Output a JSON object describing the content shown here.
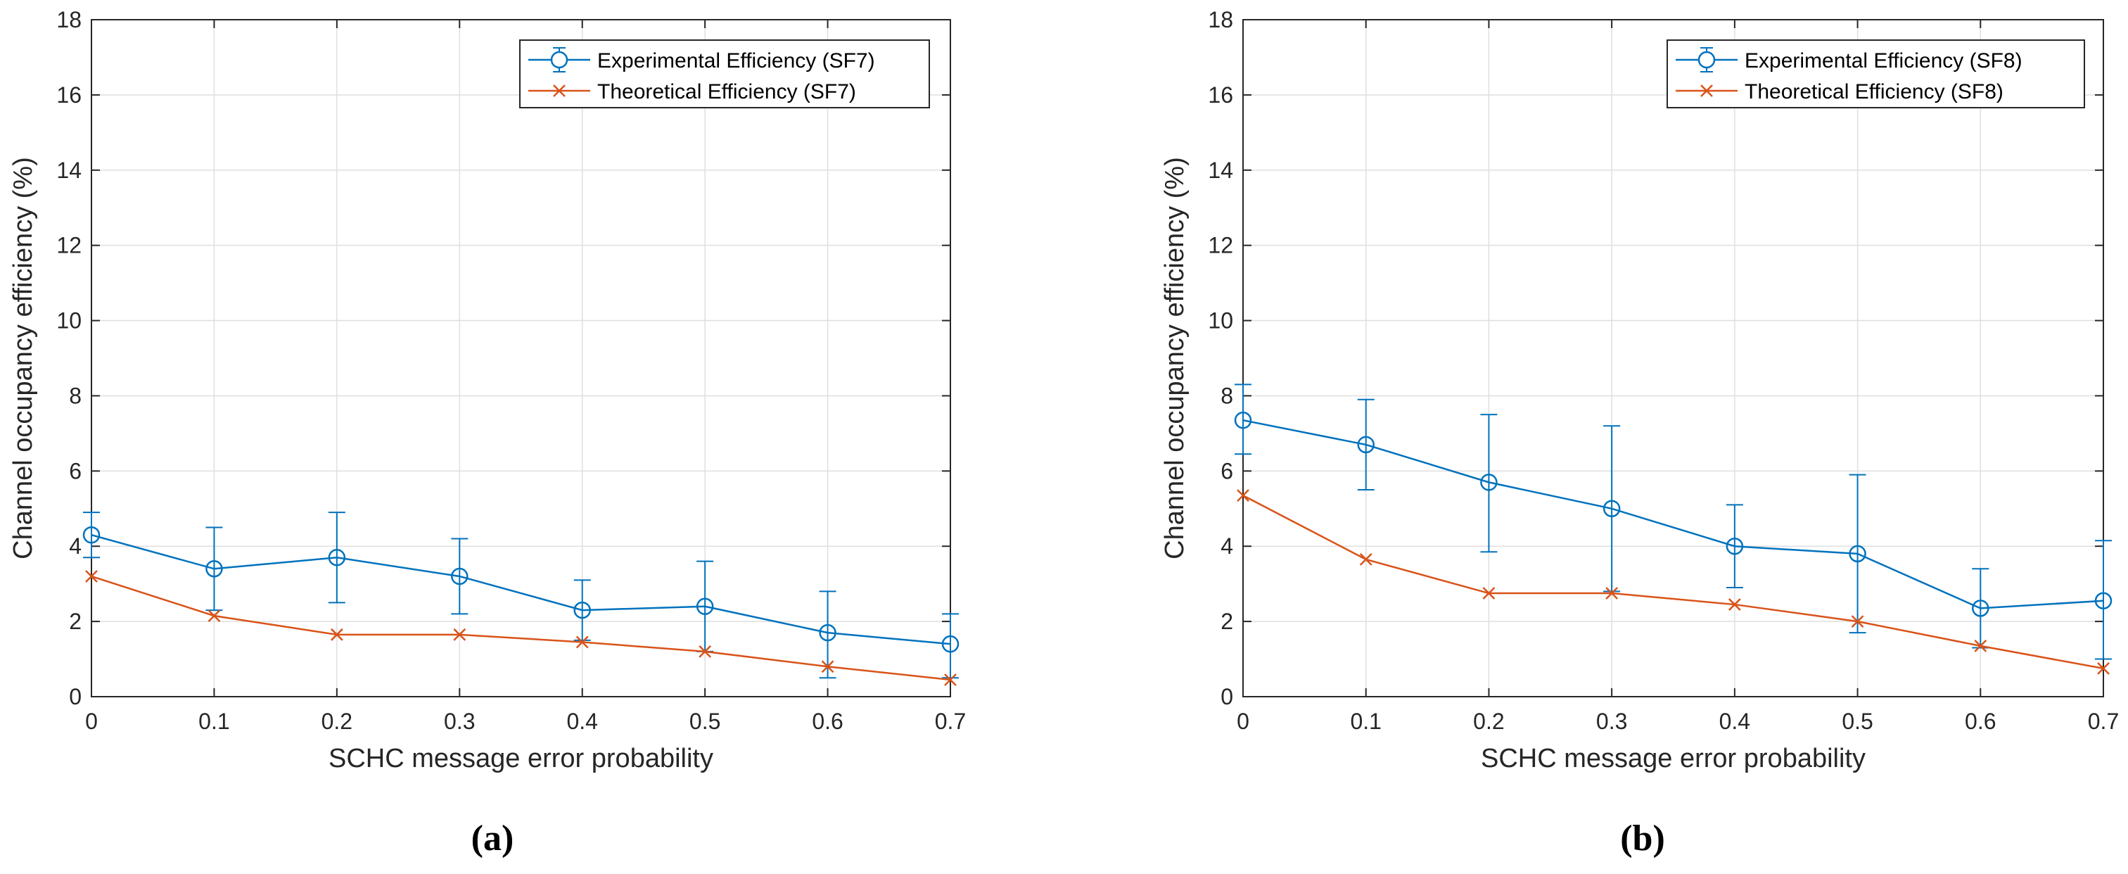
{
  "chart_data": [
    {
      "type": "line",
      "subfigure_label": "(a)",
      "xlabel": "SCHC message error probability",
      "ylabel": "Channel occupancy efficiency (%)",
      "xlim": [
        0,
        0.7
      ],
      "ylim": [
        0,
        18
      ],
      "x_ticks": [
        0,
        0.1,
        0.2,
        0.3,
        0.4,
        0.5,
        0.6,
        0.7
      ],
      "x_tick_labels": [
        "0",
        "0.1",
        "0.2",
        "0.3",
        "0.4",
        "0.5",
        "0.6",
        "0.7"
      ],
      "y_ticks": [
        0,
        2,
        4,
        6,
        8,
        10,
        12,
        14,
        16,
        18
      ],
      "y_tick_labels": [
        "0",
        "2",
        "4",
        "6",
        "8",
        "10",
        "12",
        "14",
        "16",
        "18"
      ],
      "grid": true,
      "legend_position": "top-right",
      "x": [
        0,
        0.1,
        0.2,
        0.3,
        0.4,
        0.5,
        0.6,
        0.7
      ],
      "series": [
        {
          "name": "Experimental Efficiency (SF7)",
          "marker": "circle",
          "error_bars": true,
          "color": "#0072BD",
          "values": [
            4.3,
            3.4,
            3.7,
            3.2,
            2.3,
            2.4,
            1.7,
            1.4
          ],
          "error_low": [
            3.7,
            2.3,
            2.5,
            2.2,
            1.5,
            1.2,
            0.5,
            0.5
          ],
          "error_high": [
            4.9,
            4.5,
            4.9,
            4.2,
            3.1,
            3.6,
            2.8,
            2.2
          ]
        },
        {
          "name": "Theoretical Efficiency (SF7)",
          "marker": "x",
          "error_bars": false,
          "color": "#D95319",
          "values": [
            3.2,
            2.15,
            1.65,
            1.65,
            1.45,
            1.2,
            0.8,
            0.45
          ]
        }
      ]
    },
    {
      "type": "line",
      "subfigure_label": "(b)",
      "xlabel": "SCHC message error probability",
      "ylabel": "Channel occupancy efficiency (%)",
      "xlim": [
        0,
        0.7
      ],
      "ylim": [
        0,
        18
      ],
      "x_ticks": [
        0,
        0.1,
        0.2,
        0.3,
        0.4,
        0.5,
        0.6,
        0.7
      ],
      "x_tick_labels": [
        "0",
        "0.1",
        "0.2",
        "0.3",
        "0.4",
        "0.5",
        "0.6",
        "0.7"
      ],
      "y_ticks": [
        0,
        2,
        4,
        6,
        8,
        10,
        12,
        14,
        16,
        18
      ],
      "y_tick_labels": [
        "0",
        "2",
        "4",
        "6",
        "8",
        "10",
        "12",
        "14",
        "16",
        "18"
      ],
      "grid": true,
      "legend_position": "top-right",
      "x": [
        0,
        0.1,
        0.2,
        0.3,
        0.4,
        0.5,
        0.6,
        0.7
      ],
      "series": [
        {
          "name": "Experimental Efficiency (SF8)",
          "marker": "circle",
          "error_bars": true,
          "color": "#0072BD",
          "values": [
            7.35,
            6.7,
            5.7,
            5.0,
            4.0,
            3.8,
            2.35,
            2.55
          ],
          "error_low": [
            6.45,
            5.5,
            3.85,
            2.8,
            2.9,
            1.7,
            1.3,
            1.0
          ],
          "error_high": [
            8.3,
            7.9,
            7.5,
            7.2,
            5.1,
            5.9,
            3.4,
            4.15
          ]
        },
        {
          "name": "Theoretical Efficiency (SF8)",
          "marker": "x",
          "error_bars": false,
          "color": "#D95319",
          "values": [
            5.35,
            3.65,
            2.75,
            2.75,
            2.45,
            2.0,
            1.35,
            0.75
          ]
        }
      ]
    }
  ]
}
